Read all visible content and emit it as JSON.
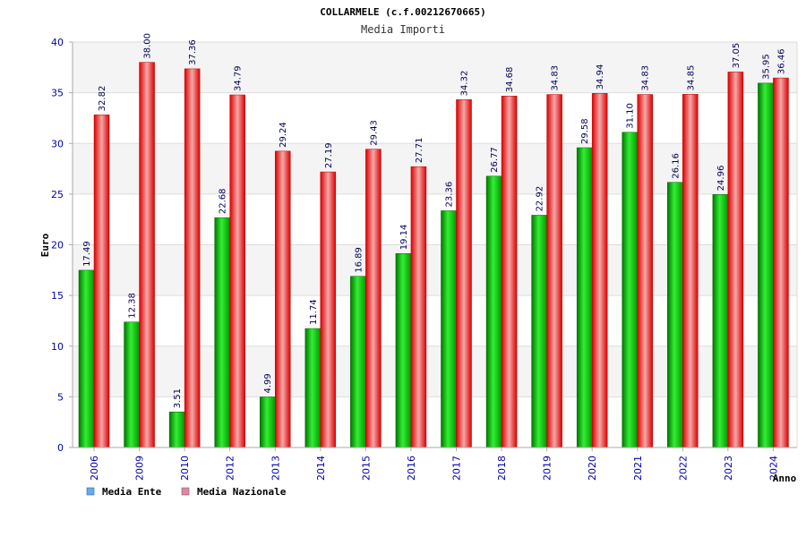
{
  "chart_data": {
    "type": "bar",
    "title": "COLLARMELE (c.f.00212670665)",
    "subtitle": "Media Importi",
    "xlabel": "Anno",
    "ylabel": "Euro",
    "ylim": [
      0,
      40
    ],
    "yticks": [
      0,
      5,
      10,
      15,
      20,
      25,
      30,
      35,
      40
    ],
    "grid": "horizontal bands",
    "legend_position": "bottom-left",
    "categories": [
      "2006",
      "2009",
      "2010",
      "2012",
      "2013",
      "2014",
      "2015",
      "2016",
      "2017",
      "2018",
      "2019",
      "2020",
      "2021",
      "2022",
      "2023",
      "2024"
    ],
    "series": [
      {
        "name": "Media Ente",
        "color": "#00aa00",
        "legend_color": "#66aaee",
        "values": [
          17.49,
          12.38,
          3.51,
          22.68,
          4.99,
          11.74,
          16.89,
          19.14,
          23.36,
          26.77,
          22.92,
          29.58,
          31.1,
          26.16,
          24.96,
          35.95
        ],
        "labels": [
          "17.49",
          "12.38",
          "3.51",
          "22.68",
          "4.99",
          "11.74",
          "16.89",
          "19.14",
          "23.36",
          "26.77",
          "22.92",
          "29.58",
          "31.10",
          "26.16",
          "24.96",
          "35.95"
        ]
      },
      {
        "name": "Media Nazionale",
        "color": "#ee1111",
        "legend_color": "#dd88aa",
        "values": [
          32.82,
          38.0,
          37.36,
          34.79,
          29.24,
          27.19,
          29.43,
          27.71,
          34.32,
          34.68,
          34.83,
          34.94,
          34.83,
          34.85,
          37.05,
          36.46
        ],
        "labels": [
          "32.82",
          "38.00",
          "37.36",
          "34.79",
          "29.24",
          "27.19",
          "29.43",
          "27.71",
          "34.32",
          "34.68",
          "34.83",
          "34.94",
          "34.83",
          "34.85",
          "37.05",
          "36.46"
        ]
      }
    ]
  }
}
